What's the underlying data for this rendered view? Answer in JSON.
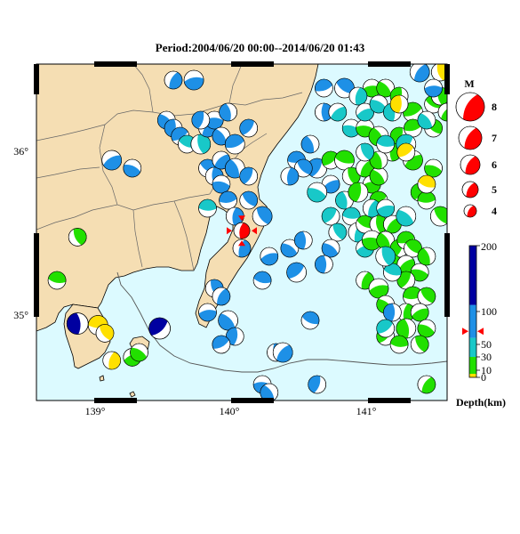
{
  "title": "Period:2004/06/20 00:00--2014/06/20 01:43",
  "map": {
    "lon_range": [
      138.6,
      141.6
    ],
    "lat_range": [
      34.5,
      36.6
    ],
    "lon_ticks": [
      "139°",
      "140°",
      "141°"
    ],
    "lat_ticks": [
      "36°",
      "35°"
    ],
    "colors": {
      "land": "#f5deb3",
      "sea": "#dcfaff",
      "coast": "#000000",
      "prefecture_border": "#666666"
    }
  },
  "magnitude_legend": {
    "title": "M",
    "labels": [
      "8",
      "7",
      "6",
      "5",
      "4"
    ],
    "color": "#ff0000"
  },
  "depth_legend": {
    "label": "Depth(km)",
    "tick_labels": [
      "200",
      "100",
      "50",
      "30",
      "10",
      "0"
    ],
    "ticks_km": [
      200,
      100,
      50,
      30,
      10,
      0
    ],
    "bands": [
      {
        "from_km": 0,
        "to_km": 5,
        "color": "#ffe000"
      },
      {
        "from_km": 5,
        "to_km": 30,
        "color": "#22e000"
      },
      {
        "from_km": 30,
        "to_km": 60,
        "color": "#18c8c8"
      },
      {
        "from_km": 60,
        "to_km": 110,
        "color": "#1e90e6"
      },
      {
        "from_km": 110,
        "to_km": 200,
        "color": "#0000a0"
      }
    ],
    "marker_depth_km": 70,
    "marker_color": "#ff0000"
  },
  "highlight_event": {
    "lon": 140.1,
    "lat": 35.56,
    "color": "#ff0000"
  },
  "colors": {
    "yellow": "#ffe000",
    "green": "#22e000",
    "cyan": "#18c8c8",
    "blue": "#1e90e6",
    "navy": "#0000a0"
  },
  "events": [
    [
      "yellow",
      139.05,
      34.97
    ],
    [
      "yellow",
      139.1,
      34.92
    ],
    [
      "yellow",
      139.15,
      34.75
    ],
    [
      "green",
      139.3,
      34.77
    ],
    [
      "green",
      139.35,
      34.8
    ],
    [
      "navy",
      138.9,
      34.98
    ],
    [
      "navy",
      139.5,
      34.95
    ],
    [
      "green",
      138.75,
      35.25
    ],
    [
      "green",
      138.9,
      35.52
    ],
    [
      "blue",
      139.6,
      36.5
    ],
    [
      "blue",
      139.75,
      36.5
    ],
    [
      "blue",
      139.55,
      36.25
    ],
    [
      "blue",
      139.6,
      36.2
    ],
    [
      "blue",
      139.65,
      36.15
    ],
    [
      "cyan",
      139.7,
      36.1
    ],
    [
      "cyan",
      139.8,
      36.1
    ],
    [
      "blue",
      139.85,
      36.2
    ],
    [
      "blue",
      139.9,
      36.25
    ],
    [
      "blue",
      139.95,
      36.15
    ],
    [
      "blue",
      139.8,
      36.25
    ],
    [
      "blue",
      140.05,
      36.1
    ],
    [
      "blue",
      139.85,
      35.95
    ],
    [
      "blue",
      139.9,
      35.9
    ],
    [
      "blue",
      139.95,
      36.0
    ],
    [
      "blue",
      139.95,
      35.85
    ],
    [
      "blue",
      140.05,
      35.95
    ],
    [
      "blue",
      140.15,
      35.9
    ],
    [
      "blue",
      140.0,
      35.75
    ],
    [
      "blue",
      140.15,
      35.75
    ],
    [
      "blue",
      140.05,
      35.65
    ],
    [
      "blue",
      139.15,
      36.0
    ],
    [
      "blue",
      139.3,
      35.95
    ],
    [
      "blue",
      140.0,
      36.3
    ],
    [
      "blue",
      140.15,
      36.2
    ],
    [
      "cyan",
      139.85,
      35.7
    ],
    [
      "blue",
      140.25,
      35.65
    ],
    [
      "blue",
      140.1,
      35.45
    ],
    [
      "blue",
      140.3,
      35.4
    ],
    [
      "blue",
      140.45,
      35.45
    ],
    [
      "blue",
      140.55,
      35.5
    ],
    [
      "blue",
      140.5,
      35.3
    ],
    [
      "blue",
      140.25,
      35.25
    ],
    [
      "blue",
      139.9,
      35.2
    ],
    [
      "blue",
      139.95,
      35.15
    ],
    [
      "blue",
      139.85,
      35.05
    ],
    [
      "blue",
      140.0,
      35.0
    ],
    [
      "blue",
      140.05,
      34.9
    ],
    [
      "blue",
      139.95,
      34.85
    ],
    [
      "blue",
      140.6,
      35.0
    ],
    [
      "blue",
      140.35,
      34.8
    ],
    [
      "blue",
      140.4,
      34.8
    ],
    [
      "blue",
      140.25,
      34.6
    ],
    [
      "blue",
      140.3,
      34.55
    ],
    [
      "blue",
      140.65,
      34.6
    ],
    [
      "blue",
      140.7,
      36.45
    ],
    [
      "blue",
      140.85,
      36.45
    ],
    [
      "blue",
      140.7,
      36.3
    ],
    [
      "cyan",
      140.8,
      36.3
    ],
    [
      "cyan",
      140.9,
      36.2
    ],
    [
      "blue",
      140.6,
      36.1
    ],
    [
      "blue",
      140.65,
      35.95
    ],
    [
      "blue",
      140.5,
      36.0
    ],
    [
      "blue",
      140.55,
      35.95
    ],
    [
      "blue",
      140.45,
      35.9
    ],
    [
      "blue",
      140.75,
      35.85
    ],
    [
      "cyan",
      140.65,
      35.8
    ],
    [
      "cyan",
      140.85,
      35.75
    ],
    [
      "cyan",
      140.75,
      35.65
    ],
    [
      "cyan",
      140.9,
      35.65
    ],
    [
      "cyan",
      140.8,
      35.55
    ],
    [
      "cyan",
      140.95,
      35.55
    ],
    [
      "cyan",
      141.0,
      35.45
    ],
    [
      "blue",
      140.75,
      35.45
    ],
    [
      "blue",
      140.7,
      35.35
    ],
    [
      "green",
      140.75,
      36.0
    ],
    [
      "green",
      140.85,
      36.0
    ],
    [
      "green",
      140.9,
      35.9
    ],
    [
      "green",
      141.0,
      35.95
    ],
    [
      "green",
      141.05,
      35.85
    ],
    [
      "green",
      141.1,
      35.9
    ],
    [
      "green",
      140.95,
      35.8
    ],
    [
      "green",
      141.1,
      35.75
    ],
    [
      "green",
      141.0,
      35.6
    ],
    [
      "green",
      141.1,
      35.6
    ],
    [
      "green",
      141.2,
      35.6
    ],
    [
      "green",
      141.05,
      35.5
    ],
    [
      "green",
      141.15,
      35.5
    ],
    [
      "green",
      141.25,
      35.45
    ],
    [
      "green",
      141.3,
      35.5
    ],
    [
      "green",
      141.35,
      35.45
    ],
    [
      "green",
      141.2,
      35.35
    ],
    [
      "green",
      141.3,
      35.35
    ],
    [
      "green",
      141.4,
      35.3
    ],
    [
      "green",
      141.45,
      35.4
    ],
    [
      "green",
      141.3,
      35.25
    ],
    [
      "green",
      141.35,
      35.15
    ],
    [
      "green",
      141.45,
      35.15
    ],
    [
      "green",
      141.3,
      35.05
    ],
    [
      "green",
      141.4,
      35.05
    ],
    [
      "green",
      141.45,
      34.95
    ],
    [
      "green",
      141.3,
      34.95
    ],
    [
      "green",
      141.15,
      34.9
    ],
    [
      "green",
      141.25,
      34.85
    ],
    [
      "green",
      141.4,
      34.85
    ],
    [
      "green",
      141.0,
      35.25
    ],
    [
      "green",
      141.1,
      35.2
    ],
    [
      "green",
      141.15,
      35.1
    ],
    [
      "blue",
      141.2,
      35.05
    ],
    [
      "cyan",
      141.15,
      34.95
    ],
    [
      "cyan",
      141.2,
      35.3
    ],
    [
      "cyan",
      141.15,
      35.4
    ],
    [
      "green",
      141.45,
      34.6
    ],
    [
      "green",
      141.05,
      36.45
    ],
    [
      "green",
      141.15,
      36.45
    ],
    [
      "green",
      141.25,
      36.4
    ],
    [
      "green",
      141.35,
      36.3
    ],
    [
      "green",
      141.5,
      36.35
    ],
    [
      "green",
      141.55,
      36.4
    ],
    [
      "green",
      141.6,
      36.3
    ],
    [
      "green",
      141.0,
      36.2
    ],
    [
      "green",
      141.1,
      36.15
    ],
    [
      "green",
      141.25,
      36.15
    ],
    [
      "green",
      141.35,
      36.2
    ],
    [
      "green",
      141.5,
      36.2
    ],
    [
      "green",
      141.2,
      36.05
    ],
    [
      "green",
      141.35,
      36.0
    ],
    [
      "green",
      141.5,
      35.95
    ],
    [
      "green",
      141.1,
      36.0
    ],
    [
      "green",
      141.4,
      35.8
    ],
    [
      "green",
      141.45,
      35.75
    ],
    [
      "green",
      141.55,
      35.65
    ],
    [
      "cyan",
      140.95,
      36.4
    ],
    [
      "cyan",
      141.0,
      36.3
    ],
    [
      "cyan",
      141.1,
      36.35
    ],
    [
      "cyan",
      141.2,
      36.3
    ],
    [
      "cyan",
      141.3,
      36.1
    ],
    [
      "cyan",
      141.15,
      36.1
    ],
    [
      "cyan",
      141.0,
      36.05
    ],
    [
      "cyan",
      141.05,
      35.7
    ],
    [
      "cyan",
      141.15,
      35.7
    ],
    [
      "cyan",
      141.3,
      35.65
    ],
    [
      "yellow",
      141.25,
      36.35
    ],
    [
      "yellow",
      141.3,
      36.05
    ],
    [
      "yellow",
      141.45,
      35.85
    ],
    [
      "yellow",
      141.55,
      36.55
    ],
    [
      "blue",
      141.4,
      36.55
    ],
    [
      "blue",
      141.5,
      36.45
    ],
    [
      "cyan",
      141.45,
      36.25
    ]
  ]
}
